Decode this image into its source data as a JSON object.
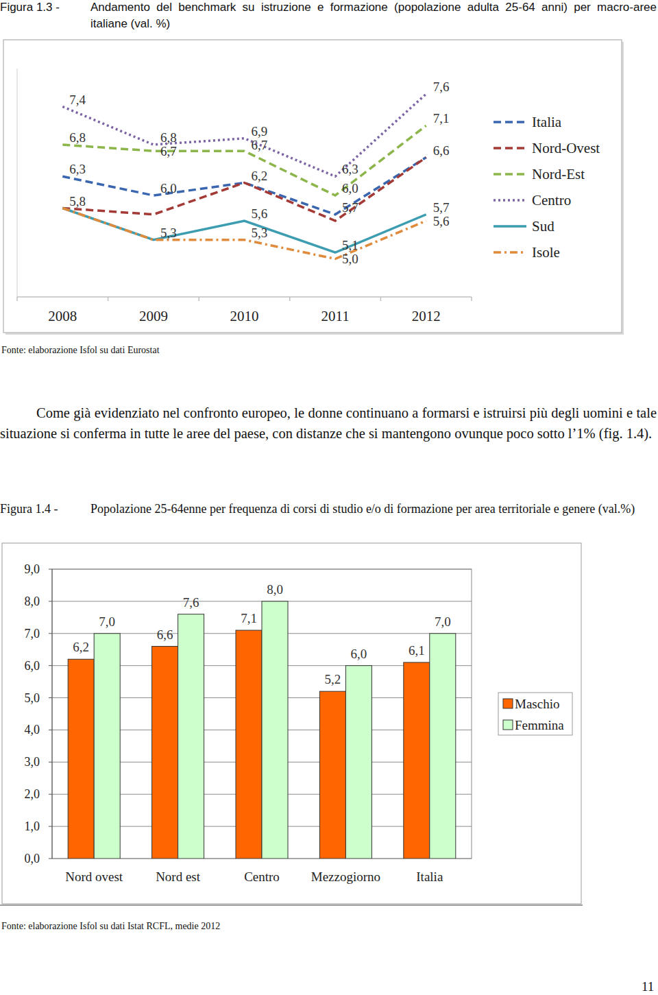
{
  "chart_data": [
    {
      "type": "line",
      "title": "Andamento del benchmark su istruzione e formazione (popolazione adulta 25-64 anni) per macro-aree italiane (val. %)",
      "annotations": [
        "Figura 1.3 -",
        "Fonte: elaborazione Isfol su dati Eurostat"
      ],
      "categories": [
        "2008",
        "2009",
        "2010",
        "2011",
        "2012"
      ],
      "ylim": [
        4.4,
        8.0
      ],
      "tick_labels": "x",
      "grid": false,
      "legend": "right",
      "data_labels": true,
      "series": [
        {
          "name": "Italia",
          "color": "#3a66b0",
          "line_style": "dashed",
          "values": [
            6.3,
            6.0,
            6.2,
            5.7,
            6.6
          ],
          "value_labels": [
            "6,3",
            "6,0",
            "6,2",
            "5,7",
            "6,6"
          ]
        },
        {
          "name": "Nord-Ovest",
          "color": "#a33a36",
          "line_style": "dashed",
          "values": [
            5.8,
            5.7,
            6.2,
            5.6,
            6.6
          ],
          "value_labels": [
            "5,8",
            null,
            null,
            null,
            null
          ]
        },
        {
          "name": "Nord-Est",
          "color": "#8cb54a",
          "line_style": "dashed",
          "values": [
            6.8,
            6.7,
            6.7,
            6.0,
            7.1
          ],
          "value_labels": [
            "6,8",
            "6,7",
            "6,7",
            "6,0",
            "7,1"
          ]
        },
        {
          "name": "Centro",
          "color": "#7b64a3",
          "line_style": "dotted",
          "values": [
            7.4,
            6.8,
            6.9,
            6.3,
            7.6
          ],
          "value_labels": [
            "7,4",
            "6,8",
            "6,9",
            "6,3",
            "7,6"
          ]
        },
        {
          "name": "Sud",
          "color": "#3c9cb0",
          "line_style": "solid",
          "values": [
            5.8,
            5.3,
            5.6,
            5.1,
            5.7
          ],
          "value_labels": [
            null,
            "5,3",
            "5,6",
            "5,1",
            "5,7"
          ]
        },
        {
          "name": "Isole",
          "color": "#e08a3c",
          "line_style": "dashdot",
          "values": [
            5.8,
            5.3,
            5.3,
            5.0,
            5.6
          ],
          "value_labels": [
            null,
            null,
            "5,3",
            "5,0",
            "5,6"
          ]
        }
      ]
    },
    {
      "type": "bar",
      "title": "Popolazione 25-64enne per frequenza di corsi di studio e/o di formazione per area territoriale e genere (val.%)",
      "annotations": [
        "Figura 1.4 -",
        "Fonte: elaborazione Isfol su dati Istat RCFL, medie 2012"
      ],
      "categories": [
        "Nord ovest",
        "Nord est",
        "Centro",
        "Mezzogiorno",
        "Italia"
      ],
      "ylim": [
        0,
        9
      ],
      "yticks": [
        {
          "value": 0,
          "label": "0,0"
        },
        {
          "value": 1,
          "label": "1,0"
        },
        {
          "value": 2,
          "label": "2,0"
        },
        {
          "value": 3,
          "label": "3,0"
        },
        {
          "value": 4,
          "label": "4,0"
        },
        {
          "value": 5,
          "label": "5,0"
        },
        {
          "value": 6,
          "label": "6,0"
        },
        {
          "value": 7,
          "label": "7,0"
        },
        {
          "value": 8,
          "label": "8,0"
        },
        {
          "value": 9,
          "label": "9,0"
        }
      ],
      "grid": true,
      "legend": "right",
      "data_labels": true,
      "series": [
        {
          "name": "Maschio",
          "color": "#ff6600",
          "values": [
            6.2,
            6.6,
            7.1,
            5.2,
            6.1
          ],
          "value_labels": [
            "6,2",
            "6,6",
            "7,1",
            "5,2",
            "6,1"
          ]
        },
        {
          "name": "Femmina",
          "color": "#ccffcc",
          "values": [
            7.0,
            7.6,
            8.0,
            6.0,
            7.0
          ],
          "value_labels": [
            "7,0",
            "7,6",
            "8,0",
            "6,0",
            "7,0"
          ]
        }
      ]
    }
  ],
  "document": {
    "paragraph": "Come già evidenziato nel confronto europeo, le donne continuano a formarsi e istruirsi più degli uomini e tale situazione si conferma in tutte le aree del paese, con distanze che si mantengono ovunque poco sotto l’1% (fig. 1.4).",
    "page_number": 11
  }
}
